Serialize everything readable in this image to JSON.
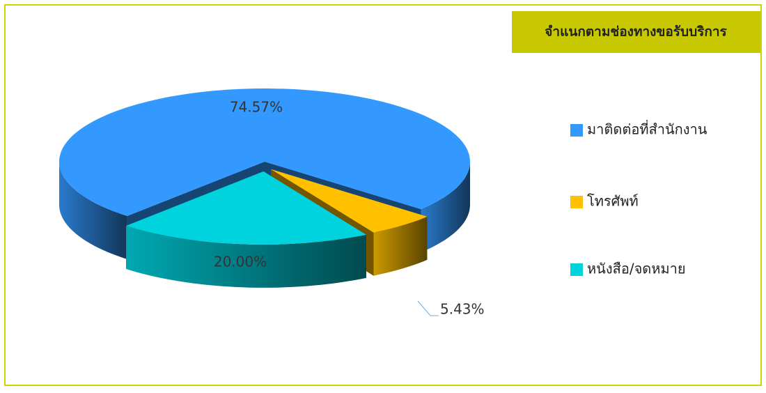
{
  "chart_data": {
    "type": "pie",
    "title": "จำแนกตามช่องทางขอรับบริการ",
    "categories": [
      "มาติดต่อที่สำนักงาน",
      "โทรศัพท์",
      "หนังสือ/จดหมาย"
    ],
    "values": [
      74.57,
      5.43,
      20.0
    ],
    "value_labels": [
      "74.57%",
      "5.43%",
      "20.00%"
    ],
    "colors": [
      "#3399ff",
      "#ffc000",
      "#00d2de"
    ],
    "legend": "right"
  }
}
